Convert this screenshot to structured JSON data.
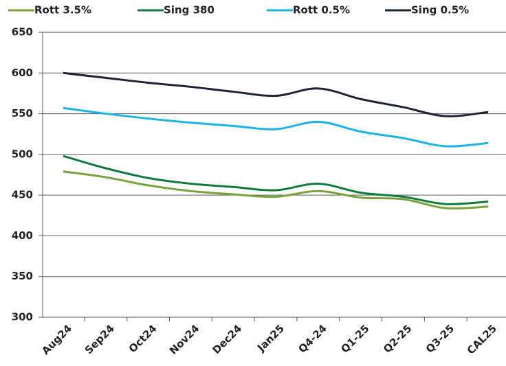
{
  "chart_data": {
    "type": "line",
    "categories": [
      "Aug24",
      "Sep24",
      "Oct24",
      "Nov24",
      "Dec24",
      "Jan25",
      "Q4-24",
      "Q1-25",
      "Q2-25",
      "Q3-25",
      "CAL25"
    ],
    "series": [
      {
        "name": "Rott 3.5%",
        "color": "#77a33b",
        "values": [
          479,
          472,
          462,
          455,
          451,
          448,
          455,
          447,
          445,
          434,
          436
        ]
      },
      {
        "name": "Sing 380",
        "color": "#0f7a3a",
        "values": [
          498,
          483,
          471,
          464,
          460,
          456,
          464,
          453,
          448,
          439,
          442
        ]
      },
      {
        "name": "Rott 0.5%",
        "color": "#19b3e6",
        "values": [
          557,
          550,
          544,
          539,
          535,
          531,
          540,
          528,
          520,
          510,
          514
        ]
      },
      {
        "name": "Sing 0.5%",
        "color": "#1c2333",
        "values": [
          600,
          594,
          588,
          583,
          577,
          572,
          581,
          568,
          558,
          547,
          552
        ]
      }
    ],
    "ylim": [
      300,
      650
    ],
    "yticks": [
      300,
      350,
      400,
      450,
      500,
      550,
      600,
      650
    ],
    "grid": true,
    "legend": "top"
  }
}
